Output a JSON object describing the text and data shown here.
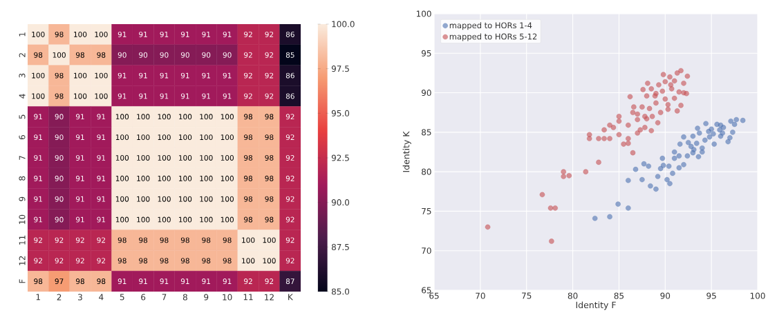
{
  "chart_data": [
    {
      "type": "heatmap",
      "categories": [
        "1",
        "2",
        "3",
        "4",
        "5",
        "6",
        "7",
        "8",
        "9",
        "10",
        "11",
        "12",
        "K"
      ],
      "y_categories": [
        "1",
        "2",
        "3",
        "4",
        "5",
        "6",
        "7",
        "8",
        "9",
        "10",
        "11",
        "12",
        "F"
      ],
      "cells": [
        [
          100,
          98,
          100,
          100,
          91,
          91,
          91,
          91,
          91,
          91,
          92,
          92,
          86
        ],
        [
          98,
          100,
          98,
          98,
          90,
          90,
          90,
          90,
          90,
          90,
          92,
          92,
          85
        ],
        [
          100,
          98,
          100,
          100,
          91,
          91,
          91,
          91,
          91,
          91,
          92,
          92,
          86
        ],
        [
          100,
          98,
          100,
          100,
          91,
          91,
          91,
          91,
          91,
          91,
          92,
          92,
          86
        ],
        [
          91,
          90,
          91,
          91,
          100,
          100,
          100,
          100,
          100,
          100,
          98,
          98,
          92
        ],
        [
          91,
          90,
          91,
          91,
          100,
          100,
          100,
          100,
          100,
          100,
          98,
          98,
          92
        ],
        [
          91,
          90,
          91,
          91,
          100,
          100,
          100,
          100,
          100,
          100,
          98,
          98,
          92
        ],
        [
          91,
          90,
          91,
          91,
          100,
          100,
          100,
          100,
          100,
          100,
          98,
          98,
          92
        ],
        [
          91,
          90,
          91,
          91,
          100,
          100,
          100,
          100,
          100,
          100,
          98,
          98,
          92
        ],
        [
          91,
          90,
          91,
          91,
          100,
          100,
          100,
          100,
          100,
          100,
          98,
          98,
          92
        ],
        [
          92,
          92,
          92,
          92,
          98,
          98,
          98,
          98,
          98,
          98,
          100,
          100,
          92
        ],
        [
          92,
          92,
          92,
          92,
          98,
          98,
          98,
          98,
          98,
          98,
          100,
          100,
          92
        ],
        [
          98,
          97,
          98,
          98,
          91,
          91,
          91,
          91,
          91,
          91,
          92,
          92,
          87
        ]
      ],
      "data_labels": true,
      "clim": [
        85,
        100
      ],
      "cticks": [
        {
          "value": 85,
          "label": "85.0"
        },
        {
          "value": 87.5,
          "label": "87.5"
        },
        {
          "value": 90,
          "label": "90.0"
        },
        {
          "value": 92.5,
          "label": "92.5"
        },
        {
          "value": 95,
          "label": "95.0"
        },
        {
          "value": 97.5,
          "label": "97.5"
        },
        {
          "value": 100,
          "label": "100.0"
        }
      ]
    },
    {
      "type": "scatter",
      "xlabel": "Identity F",
      "ylabel": "Identity K",
      "xlim": [
        65,
        100
      ],
      "ylim": [
        65,
        100
      ],
      "xticks": [
        65,
        70,
        75,
        80,
        85,
        90,
        95,
        100
      ],
      "yticks": [
        65,
        70,
        75,
        80,
        85,
        90,
        95,
        100
      ],
      "grid": true,
      "legend": "top left",
      "marker": "circle",
      "series": [
        {
          "name": "mapped to HORs 1-4",
          "color": "#4c72b0",
          "x": [
            82.4,
            84,
            84.9,
            86,
            86,
            86.8,
            87.5,
            87.7,
            88.2,
            88.4,
            89,
            89.2,
            89.5,
            89.8,
            89.7,
            90.4,
            90.2,
            90.5,
            90.8,
            91,
            91,
            91.5,
            91.5,
            91.6,
            92,
            92,
            92.4,
            92.5,
            92.8,
            93,
            93,
            93.4,
            93.5,
            93.7,
            94,
            94,
            94.3,
            94.4,
            94.7,
            95,
            95.3,
            95.6,
            96,
            96,
            96.2,
            95.9,
            96.8,
            97,
            97.3,
            97.1,
            97.5,
            97.7,
            98.4,
            96.3,
            95.2,
            94.8,
            93.6,
            93.1
          ],
          "values": [
            74.1,
            74.3,
            75.9,
            75.4,
            78.9,
            80.3,
            79,
            81,
            80.7,
            78.2,
            77.8,
            79.4,
            80.4,
            80.8,
            81.7,
            80.7,
            79,
            78.5,
            79.8,
            81.7,
            82.5,
            80.5,
            82,
            83.5,
            80.9,
            84.4,
            82,
            83.7,
            83.2,
            82.4,
            84.5,
            83.6,
            85.5,
            84.9,
            82.5,
            83,
            84,
            86.1,
            85.1,
            85.4,
            83.5,
            86,
            85.9,
            84.5,
            84.9,
            85.3,
            83.8,
            84.3,
            85,
            86.4,
            86,
            86.6,
            86.5,
            85.6,
            84.8,
            84.4,
            81.9,
            82.8
          ]
        },
        {
          "name": "mapped to HORs 5-12",
          "color": "#c44e52",
          "x": [
            70.8,
            76.7,
            77.6,
            78.1,
            77.7,
            79,
            79,
            79.6,
            81.4,
            81.8,
            81.8,
            82.8,
            82.8,
            83.4,
            83.4,
            84,
            84,
            84.4,
            85,
            85,
            85,
            85.5,
            86,
            86,
            86,
            86.2,
            86.6,
            86.5,
            87,
            87,
            87,
            87.5,
            87.3,
            87.8,
            88,
            88,
            88.3,
            88.5,
            88.6,
            89,
            89,
            89.3,
            89.5,
            89.7,
            90,
            90,
            90.3,
            90.5,
            90.7,
            91,
            91,
            91.3,
            91.5,
            91.7,
            92,
            92,
            91.7,
            91.3,
            90.3,
            89.2,
            88.5,
            87.8,
            86.5,
            88.1,
            87.6,
            92.3,
            92.4,
            89.8,
            90.6,
            88.9
          ],
          "values": [
            73,
            77.1,
            75.4,
            75.4,
            71.2,
            80,
            79.4,
            79.5,
            80,
            84.2,
            84.7,
            81.2,
            84.2,
            84.2,
            85.3,
            84.2,
            85.9,
            85.6,
            84.7,
            86.4,
            87,
            83.5,
            83.6,
            84.2,
            85.9,
            89.5,
            88.2,
            82.4,
            84.9,
            86.6,
            87.3,
            88.2,
            85.3,
            85.6,
            89.6,
            86.7,
            88,
            90.5,
            87,
            88.7,
            89.9,
            91,
            87.5,
            90.2,
            89.2,
            91.4,
            88.5,
            92,
            90.5,
            91.5,
            89.3,
            92.5,
            90.1,
            92.8,
            91.2,
            90,
            88.4,
            87.7,
            87.9,
            86.2,
            85.2,
            87,
            87.5,
            91.2,
            90.4,
            89.9,
            92.1,
            92.3,
            91,
            89.6
          ]
        }
      ]
    }
  ]
}
